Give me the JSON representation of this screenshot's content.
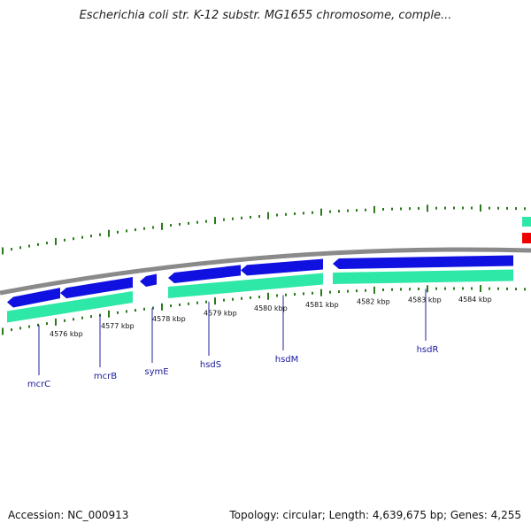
{
  "title": "Escherichia coli str. K-12 substr. MG1655 chromosome, comple...",
  "footer": {
    "accession": "Accession: NC_000913",
    "stats": "Topology: circular; Length: 4,639,675 bp; Genes: 4,255"
  },
  "colors": {
    "backbone": "#8a8a8a",
    "forward_gene": "#1010e0",
    "reverse_gene": "#2ee8a8",
    "tick_green": "#2a7a1a",
    "tick_dark": "#555555",
    "label_line": "#2020a0",
    "edge_red": "#ee0000",
    "edge_green": "#2ee8a8"
  },
  "map": {
    "kbp_labels": [
      "4576 kbp",
      "4577 kbp",
      "4578 kbp",
      "4579 kbp",
      "4580 kbp",
      "4581 kbp",
      "4582 kbp",
      "4583 kbp",
      "4584 kbp"
    ],
    "gene_labels": [
      "mcrC",
      "mcrB",
      "symE",
      "hsdS",
      "hsdM",
      "hsdR"
    ]
  }
}
